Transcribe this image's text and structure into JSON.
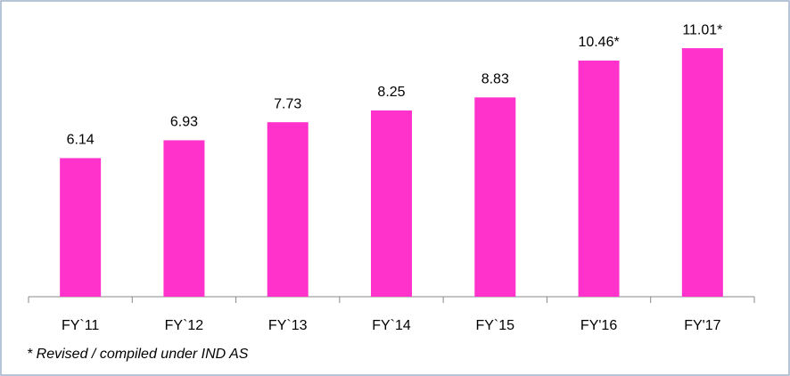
{
  "chart_data": {
    "type": "bar",
    "categories": [
      "FY`11",
      "FY`12",
      "FY`13",
      "FY`14",
      "FY`15",
      "FY'16",
      "FY'17"
    ],
    "values": [
      6.14,
      6.93,
      7.73,
      8.25,
      8.83,
      10.46,
      11.01
    ],
    "value_labels": [
      "6.14",
      "6.93",
      "7.73",
      "8.25",
      "8.83",
      "10.46*",
      "11.01*"
    ],
    "color": "#ff33cc",
    "ylim": [
      0,
      12
    ],
    "footnote": "* Revised / compiled under IND AS"
  }
}
